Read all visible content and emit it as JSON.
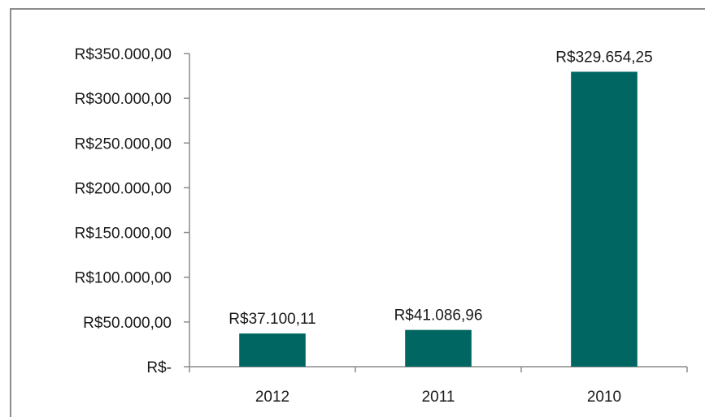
{
  "chart_data": {
    "type": "bar",
    "title": "",
    "xlabel": "",
    "ylabel": "",
    "categories": [
      "2012",
      "2011",
      "2010"
    ],
    "values": [
      37100.11,
      41086.96,
      329654.25
    ],
    "data_labels": [
      "R$37.100,11",
      "R$41.086,96",
      "R$329.654,25"
    ],
    "ylim": [
      0,
      350000
    ],
    "y_ticks": [
      {
        "value": 0,
        "label": "R$-"
      },
      {
        "value": 50000,
        "label": "R$50.000,00"
      },
      {
        "value": 100000,
        "label": "R$100.000,00"
      },
      {
        "value": 150000,
        "label": "R$150.000,00"
      },
      {
        "value": 200000,
        "label": "R$200.000,00"
      },
      {
        "value": 250000,
        "label": "R$250.000,00"
      },
      {
        "value": 300000,
        "label": "R$300.000,00"
      },
      {
        "value": 350000,
        "label": "R$350.000,00"
      }
    ],
    "bar_color": "#006661",
    "axis_color": "#8c8c8c",
    "grid": false,
    "legend": "none"
  }
}
